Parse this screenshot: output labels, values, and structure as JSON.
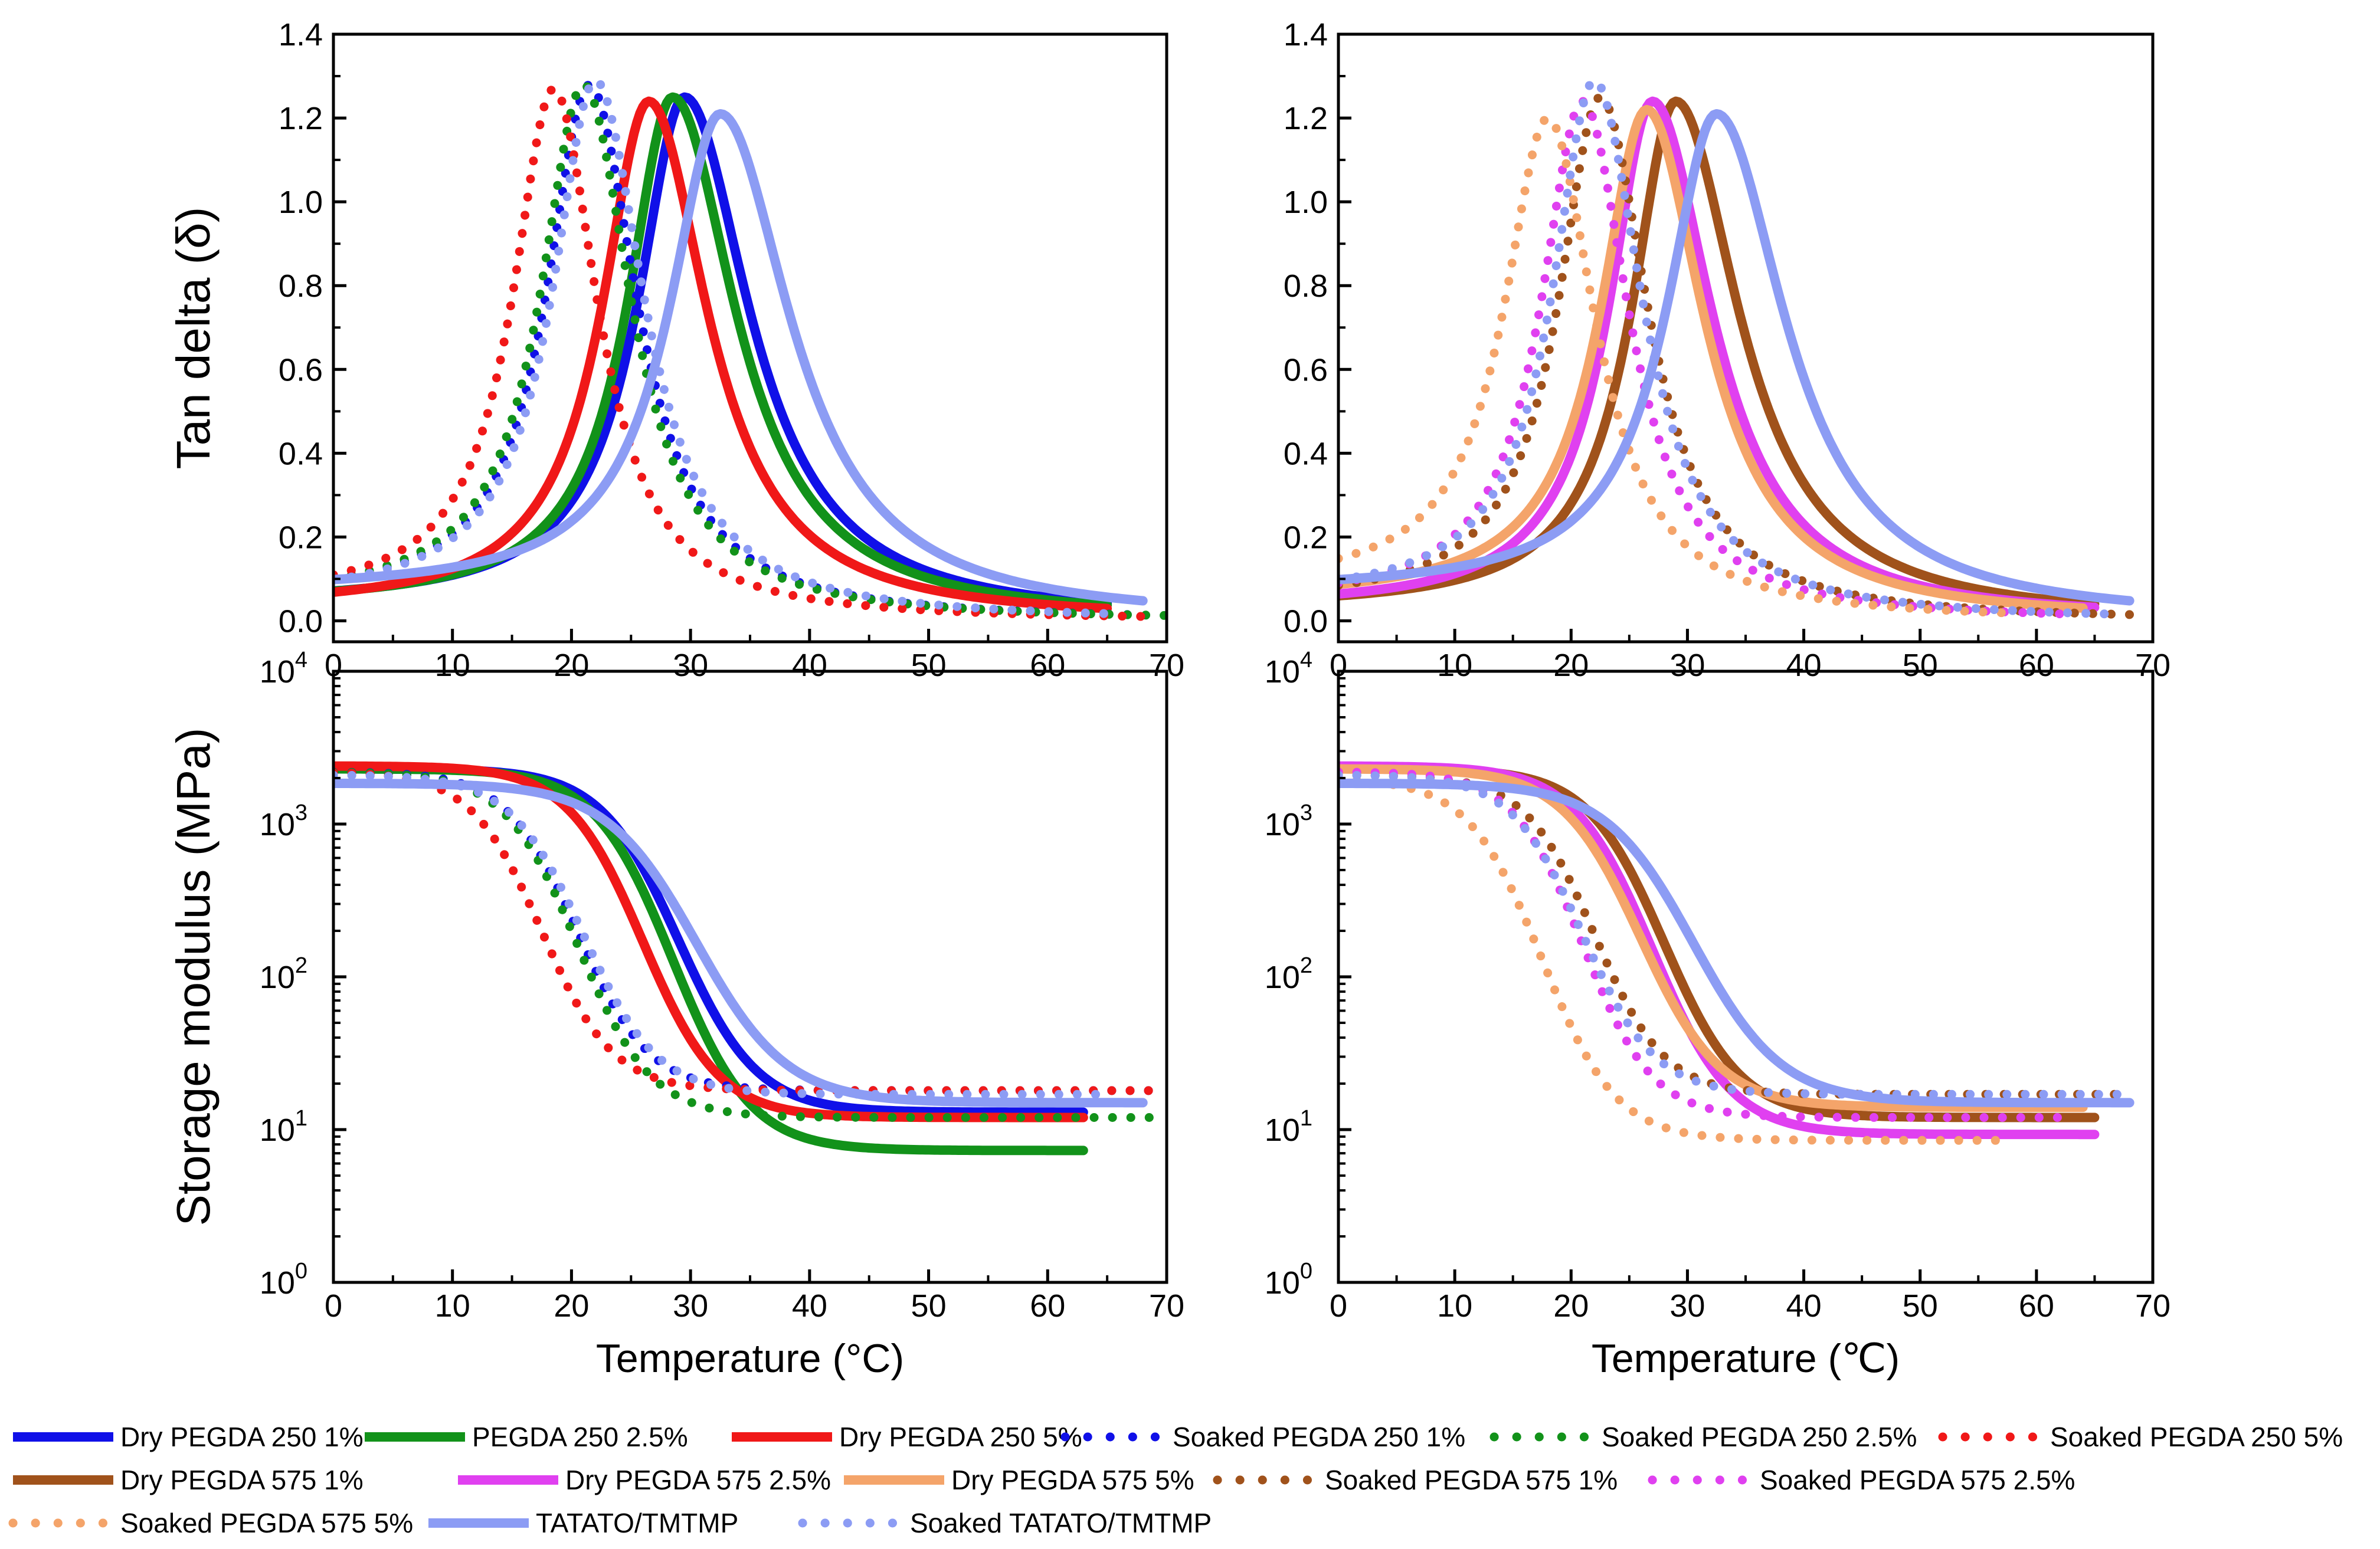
{
  "chart_data": [
    {
      "id": "tan-left",
      "type": "line",
      "title": "",
      "ylabel": "Tan delta (δ)",
      "xlabel": "",
      "xlim": [
        0,
        70
      ],
      "ylim": [
        -0.05,
        1.4
      ],
      "yscale": "linear",
      "xticks": [
        "0",
        "10",
        "20",
        "30",
        "40",
        "50",
        "60",
        "70"
      ],
      "yticks": [
        "0.0",
        "0.2",
        "0.4",
        "0.6",
        "0.8",
        "1.0",
        "1.2",
        "1.4"
      ],
      "series": [
        {
          "name": "Dry PEGDA 250 1%",
          "color": "#1010e8",
          "dotted": false,
          "peak_x": 29.5,
          "peak_y": 1.25,
          "wl": 4.8,
          "wr": 6.6,
          "base_l": 0.04,
          "base_r": 0.0,
          "x_end": 65
        },
        {
          "name": "PEGDA 250 2.5%",
          "color": "#12921a",
          "dotted": false,
          "peak_x": 28.5,
          "peak_y": 1.25,
          "wl": 4.6,
          "wr": 6.4,
          "base_l": 0.04,
          "base_r": 0.0,
          "x_end": 65
        },
        {
          "name": "Dry PEGDA 250 5%",
          "color": "#f01818",
          "dotted": false,
          "peak_x": 26.5,
          "peak_y": 1.24,
          "wl": 4.8,
          "wr": 6.0,
          "base_l": 0.03,
          "base_r": 0.0,
          "x_end": 65
        },
        {
          "name": "Soaked PEGDA 250 1%",
          "color": "#1010e8",
          "dotted": true,
          "peak_x": 21.5,
          "peak_y": 1.28,
          "wl": 4.4,
          "wr": 4.9,
          "base_l": 0.05,
          "base_r": 0.0,
          "x_end": 68
        },
        {
          "name": "Soaked PEGDA 250 2.5%",
          "color": "#12921a",
          "dotted": true,
          "peak_x": 21.0,
          "peak_y": 1.28,
          "wl": 4.4,
          "wr": 4.9,
          "base_l": 0.05,
          "base_r": 0.0,
          "x_end": 70
        },
        {
          "name": "Soaked PEGDA 250 5%",
          "color": "#f01818",
          "dotted": true,
          "peak_x": 18.5,
          "peak_y": 1.27,
          "wl": 4.2,
          "wr": 4.5,
          "base_l": 0.05,
          "base_r": 0.0,
          "x_end": 68
        },
        {
          "name": "TATATO/TMTMP",
          "color": "#8c9cf4",
          "dotted": false,
          "peak_x": 32.5,
          "peak_y": 1.21,
          "wl": 5.2,
          "wr": 7.2,
          "base_l": 0.07,
          "base_r": 0.0,
          "x_end": 68
        },
        {
          "name": "Soaked TATATO/TMTMP",
          "color": "#8c9cf4",
          "dotted": true,
          "peak_x": 22.0,
          "peak_y": 1.29,
          "wl": 4.4,
          "wr": 5.0,
          "base_l": 0.05,
          "base_r": 0.0,
          "x_end": 66
        }
      ]
    },
    {
      "id": "tan-right",
      "type": "line",
      "title": "",
      "ylabel": "",
      "xlabel": "",
      "xlim": [
        0,
        70
      ],
      "ylim": [
        -0.05,
        1.4
      ],
      "yscale": "linear",
      "xticks": [
        "0",
        "10",
        "20",
        "30",
        "40",
        "50",
        "60",
        "70"
      ],
      "yticks": [
        "0.0",
        "0.2",
        "0.4",
        "0.6",
        "0.8",
        "1.0",
        "1.2",
        "1.4"
      ],
      "series": [
        {
          "name": "Dry PEGDA 575 1%",
          "color": "#a0521b",
          "dotted": false,
          "peak_x": 29.0,
          "peak_y": 1.24,
          "wl": 4.6,
          "wr": 6.6,
          "base_l": 0.03,
          "base_r": 0.0,
          "x_end": 65
        },
        {
          "name": "Dry PEGDA 575 2.5%",
          "color": "#e040f0",
          "dotted": false,
          "peak_x": 27.0,
          "peak_y": 1.24,
          "wl": 4.6,
          "wr": 6.2,
          "base_l": 0.03,
          "base_r": 0.0,
          "x_end": 65
        },
        {
          "name": "Dry PEGDA 575 5%",
          "color": "#f4a46a",
          "dotted": false,
          "peak_x": 26.5,
          "peak_y": 1.22,
          "wl": 4.8,
          "wr": 6.0,
          "base_l": 0.05,
          "base_r": 0.0,
          "x_end": 64
        },
        {
          "name": "Soaked PEGDA 575 1%",
          "color": "#a0521b",
          "dotted": true,
          "peak_x": 22.5,
          "peak_y": 1.25,
          "wl": 4.4,
          "wr": 5.0,
          "base_l": 0.04,
          "base_r": 0.0,
          "x_end": 68
        },
        {
          "name": "Soaked PEGDA 575 2.5%",
          "color": "#e040f0",
          "dotted": true,
          "peak_x": 21.0,
          "peak_y": 1.24,
          "wl": 4.4,
          "wr": 4.8,
          "base_l": 0.04,
          "base_r": 0.0,
          "x_end": 62
        },
        {
          "name": "Soaked PEGDA 575 5%",
          "color": "#f4a46a",
          "dotted": true,
          "peak_x": 18.0,
          "peak_y": 1.2,
          "wl": 4.6,
          "wr": 5.0,
          "base_l": 0.08,
          "base_r": 0.0,
          "x_end": 57
        },
        {
          "name": "TATATO/TMTMP",
          "color": "#8c9cf4",
          "dotted": false,
          "peak_x": 32.5,
          "peak_y": 1.21,
          "wl": 5.2,
          "wr": 7.2,
          "base_l": 0.07,
          "base_r": 0.0,
          "x_end": 68
        },
        {
          "name": "Soaked TATATO/TMTMP",
          "color": "#8c9cf4",
          "dotted": true,
          "peak_x": 22.0,
          "peak_y": 1.29,
          "wl": 4.4,
          "wr": 5.0,
          "base_l": 0.05,
          "base_r": 0.0,
          "x_end": 66
        }
      ]
    },
    {
      "id": "mod-left",
      "type": "line",
      "title": "",
      "ylabel": "Storage modulus (MPa)",
      "xlabel": "Temperature (°C)",
      "xlim": [
        0,
        70
      ],
      "ylim": [
        1,
        10000
      ],
      "yscale": "log",
      "xticks": [
        "0",
        "10",
        "20",
        "30",
        "40",
        "50",
        "60",
        "70"
      ],
      "yticks": [
        {
          "base": "10",
          "exp": "0"
        },
        {
          "base": "10",
          "exp": "1"
        },
        {
          "base": "10",
          "exp": "2"
        },
        {
          "base": "10",
          "exp": "3"
        },
        {
          "base": "10",
          "exp": "4"
        }
      ],
      "series": [
        {
          "name": "Dry PEGDA 250 1%",
          "color": "#1010e8",
          "dotted": false,
          "e_glass": 2300,
          "e_rubber": 13,
          "mid_x": 29.0,
          "width": 3.3,
          "x_end": 63
        },
        {
          "name": "PEGDA 250 2.5%",
          "color": "#12921a",
          "dotted": false,
          "e_glass": 2300,
          "e_rubber": 7.3,
          "mid_x": 28.5,
          "width": 3.3,
          "x_end": 63
        },
        {
          "name": "Dry PEGDA 250 5%",
          "color": "#f01818",
          "dotted": false,
          "e_glass": 2400,
          "e_rubber": 12,
          "mid_x": 26.0,
          "width": 3.2,
          "x_end": 63
        },
        {
          "name": "Soaked PEGDA 250 1%",
          "color": "#1010e8",
          "dotted": true,
          "e_glass": 2200,
          "e_rubber": 18,
          "mid_x": 20.5,
          "width": 3.0,
          "x_end": 70
        },
        {
          "name": "Soaked PEGDA 250 2.5%",
          "color": "#12921a",
          "dotted": true,
          "e_glass": 2200,
          "e_rubber": 12,
          "mid_x": 20.5,
          "width": 3.1,
          "x_end": 70
        },
        {
          "name": "Soaked PEGDA 250 5%",
          "color": "#f01818",
          "dotted": true,
          "e_glass": 2200,
          "e_rubber": 18,
          "mid_x": 17.5,
          "width": 3.0,
          "x_end": 70
        },
        {
          "name": "TATATO/TMTMP",
          "color": "#8c9cf4",
          "dotted": false,
          "e_glass": 1850,
          "e_rubber": 15,
          "mid_x": 30.5,
          "width": 3.8,
          "x_end": 68
        },
        {
          "name": "Soaked TATATO/TMTMP",
          "color": "#8c9cf4",
          "dotted": true,
          "e_glass": 2100,
          "e_rubber": 17,
          "mid_x": 21.0,
          "width": 3.1,
          "x_end": 65
        }
      ]
    },
    {
      "id": "mod-right",
      "type": "line",
      "title": "",
      "ylabel": "",
      "xlabel": "Temperature (℃)",
      "xlim": [
        0,
        70
      ],
      "ylim": [
        1,
        10000
      ],
      "yscale": "log",
      "xticks": [
        "0",
        "10",
        "20",
        "30",
        "40",
        "50",
        "60",
        "70"
      ],
      "yticks": [
        {
          "base": "10",
          "exp": "0"
        },
        {
          "base": "10",
          "exp": "1"
        },
        {
          "base": "10",
          "exp": "2"
        },
        {
          "base": "10",
          "exp": "3"
        },
        {
          "base": "10",
          "exp": "4"
        }
      ],
      "series": [
        {
          "name": "Dry PEGDA 575 1%",
          "color": "#a0521b",
          "dotted": false,
          "e_glass": 2300,
          "e_rubber": 12,
          "mid_x": 28.0,
          "width": 3.3,
          "x_end": 65
        },
        {
          "name": "Dry PEGDA 575 2.5%",
          "color": "#e040f0",
          "dotted": false,
          "e_glass": 2400,
          "e_rubber": 9.3,
          "mid_x": 27.0,
          "width": 3.4,
          "x_end": 65
        },
        {
          "name": "Dry PEGDA 575 5%",
          "color": "#f4a46a",
          "dotted": false,
          "e_glass": 2300,
          "e_rubber": 14,
          "mid_x": 26.0,
          "width": 3.4,
          "x_end": 64
        },
        {
          "name": "Soaked PEGDA 575 1%",
          "color": "#a0521b",
          "dotted": true,
          "e_glass": 2100,
          "e_rubber": 17,
          "mid_x": 22.0,
          "width": 3.0,
          "x_end": 68
        },
        {
          "name": "Soaked PEGDA 575 2.5%",
          "color": "#e040f0",
          "dotted": true,
          "e_glass": 2200,
          "e_rubber": 12,
          "mid_x": 21.0,
          "width": 3.0,
          "x_end": 62
        },
        {
          "name": "Soaked PEGDA 575 5%",
          "color": "#f4a46a",
          "dotted": true,
          "e_glass": 2000,
          "e_rubber": 8.5,
          "mid_x": 17.5,
          "width": 3.2,
          "x_end": 57
        },
        {
          "name": "TATATO/TMTMP",
          "color": "#8c9cf4",
          "dotted": false,
          "e_glass": 1850,
          "e_rubber": 15,
          "mid_x": 30.5,
          "width": 3.8,
          "x_end": 68
        },
        {
          "name": "Soaked TATATO/TMTMP",
          "color": "#8c9cf4",
          "dotted": true,
          "e_glass": 2100,
          "e_rubber": 17,
          "mid_x": 21.0,
          "width": 3.1,
          "x_end": 68
        }
      ]
    }
  ],
  "legend": {
    "placement": "bottom",
    "rows": [
      [
        {
          "label": "Dry PEGDA 250 1%",
          "color": "#1010e8",
          "dotted": false
        },
        {
          "label": "PEGDA 250 2.5%",
          "color": "#12921a",
          "dotted": false
        },
        {
          "label": "Dry PEGDA 250 5%",
          "color": "#f01818",
          "dotted": false
        },
        {
          "label": "Soaked PEGDA 250 1%",
          "color": "#1010e8",
          "dotted": true
        },
        {
          "label": "Soaked PEGDA 250 2.5%",
          "color": "#12921a",
          "dotted": true
        },
        {
          "label": "Soaked PEGDA 250 5%",
          "color": "#f01818",
          "dotted": true
        }
      ],
      [
        {
          "label": "Dry PEGDA 575 1%",
          "color": "#a0521b",
          "dotted": false
        },
        {
          "label": "Dry PEGDA 575 2.5%",
          "color": "#e040f0",
          "dotted": false
        },
        {
          "label": "Dry PEGDA 575 5%",
          "color": "#f4a46a",
          "dotted": false
        },
        {
          "label": "Soaked PEGDA 575 1%",
          "color": "#a0521b",
          "dotted": true
        },
        {
          "label": "Soaked PEGDA 575 2.5%",
          "color": "#e040f0",
          "dotted": true
        }
      ],
      [
        {
          "label": "Soaked PEGDA 575 5%",
          "color": "#f4a46a",
          "dotted": true
        },
        {
          "label": "TATATO/TMTMP",
          "color": "#8c9cf4",
          "dotted": false
        },
        {
          "label": "Soaked TATATO/TMTMP",
          "color": "#8c9cf4",
          "dotted": true
        }
      ]
    ]
  }
}
